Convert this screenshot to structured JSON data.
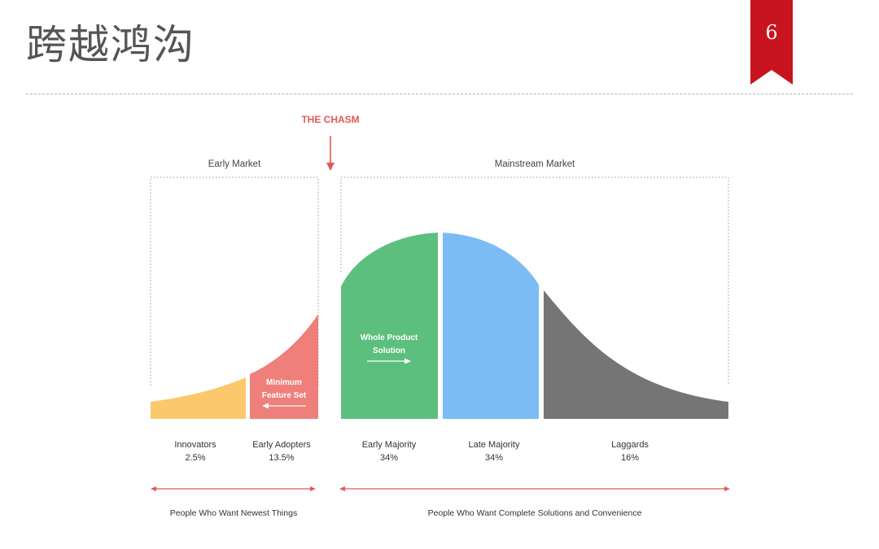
{
  "slide": {
    "title": "跨越鸿沟",
    "page_number": "6",
    "accent_color": "#c8141e"
  },
  "diagram": {
    "chasm_label": "THE CHASM",
    "early_market_label": "Early Market",
    "mainstream_market_label": "Mainstream Market",
    "segments": [
      {
        "name": "Innovators",
        "percent": "2.5%",
        "color": "#fbc96b"
      },
      {
        "name": "Early Adopters",
        "percent": "13.5%",
        "color": "#ef7f7a"
      },
      {
        "name": "Early Majority",
        "percent": "34%",
        "color": "#5dbf7e"
      },
      {
        "name": "Late Majority",
        "percent": "34%",
        "color": "#7bbcf5"
      },
      {
        "name": "Laggards",
        "percent": "16%",
        "color": "#757575"
      }
    ],
    "mvp_label_line1": "Minimum",
    "mvp_label_line2": "Feature Set",
    "whole_product_line1": "Whole Product",
    "whole_product_line2": "Solution",
    "left_range_label": "People Who Want Newest Things",
    "right_range_label": "People Who Want Complete Solutions and Convenience",
    "chasm_color": "#e05a55"
  }
}
